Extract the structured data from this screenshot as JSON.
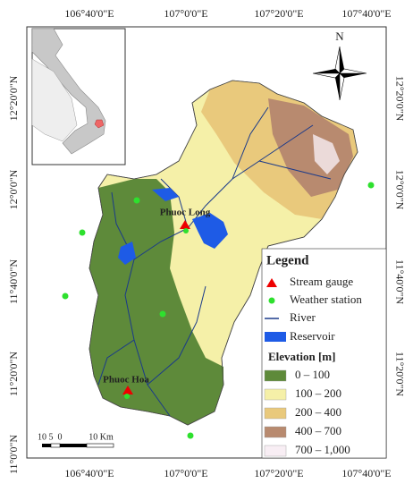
{
  "map": {
    "lon_labels": [
      "106°40'0\"E",
      "107°0'0\"E",
      "107°20'0\"E",
      "107°40'0\"E"
    ],
    "lat_labels": [
      "12°20'0\"N",
      "12°0'0\"N",
      "11°40'0\"N",
      "11°20'0\"N",
      "11°0'0\"N"
    ],
    "north": "N",
    "places": [
      "Phuoc Long",
      "Phuoc Hoa"
    ],
    "scale_labels": [
      "10",
      "5",
      "0",
      "10 Km"
    ],
    "legend": {
      "title": "Legend",
      "items": [
        "Stream gauge",
        "Weather station",
        "River",
        "Reservoir"
      ],
      "elevation_title": "Elevation [m]",
      "elevation_classes": [
        "0 – 100",
        "100 – 200",
        "200 – 400",
        "400 – 700",
        "700 – 1,000"
      ]
    }
  }
}
